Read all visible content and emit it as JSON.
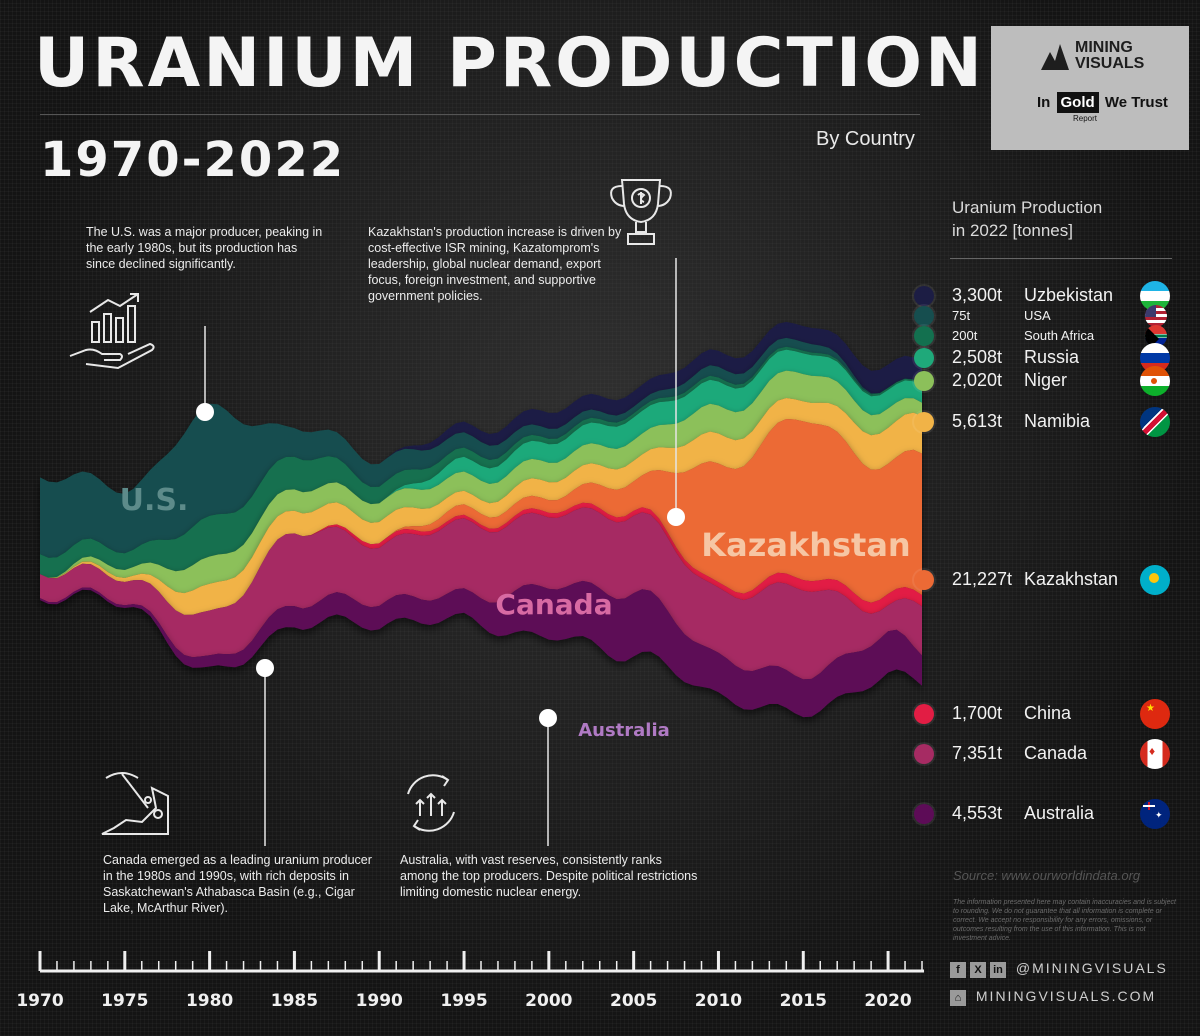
{
  "title": "URANIUM PRODUCTION",
  "years_label": "1970-2022",
  "subtitle": "By Country",
  "logo": {
    "brand_line1": "MINING",
    "brand_line2": "VISUALS",
    "partner_in": "In",
    "partner_gold": "Gold",
    "partner_trust": "We Trust",
    "partner_report": "Report"
  },
  "annotations": {
    "us": "The U.S. was a major producer, peaking in the early 1980s, but its production has since declined significantly.",
    "kazakhstan": "Kazakhstan's production increase is driven by cost-effective ISR mining, Kazatomprom's leadership, global nuclear demand, export focus, foreign investment, and supportive government policies.",
    "canada": "Canada emerged as a leading uranium producer in the 1980s and 1990s, with rich deposits in Saskatchewan's Athabasca Basin (e.g., Cigar Lake, McArthur River).",
    "australia": "Australia, with vast reserves, consistently ranks among the top producers. Despite political restrictions limiting domestic nuclear energy."
  },
  "panel": {
    "title_line1": "Uranium Production",
    "title_line2": "in 2022 [tonnes]",
    "rows": [
      {
        "value": "3,300t",
        "country": "Uzbekistan",
        "color": "#1c1d44",
        "size": "large"
      },
      {
        "value": "75t",
        "country": "USA",
        "color": "#164e4f",
        "size": "small"
      },
      {
        "value": "200t",
        "country": "South Africa",
        "color": "#13704f",
        "size": "small"
      },
      {
        "value": "2,508t",
        "country": "Russia",
        "color": "#1fa97a",
        "size": "large"
      },
      {
        "value": "2,020t",
        "country": "Niger",
        "color": "#8cc05a",
        "size": "large"
      },
      {
        "value": "5,613t",
        "country": "Namibia",
        "color": "#f1b347",
        "size": "large"
      },
      {
        "value": "21,227t",
        "country": "Kazakhstan",
        "color": "#ec6a35",
        "size": "large"
      },
      {
        "value": "1,700t",
        "country": "China",
        "color": "#e21d44",
        "size": "large"
      },
      {
        "value": "7,351t",
        "country": "Canada",
        "color": "#a62b63",
        "size": "large"
      },
      {
        "value": "4,553t",
        "country": "Australia",
        "color": "#5d0c57",
        "size": "large"
      }
    ]
  },
  "source": "Source: www.ourworldindata.org",
  "disclaimer": "The information presented here may contain inaccuracies and is subject to rounding. We do not guarantee that all information is complete or correct. We accept no responsibility for any errors, omissions, or outcomes resulting from the use of this information. This is not investment advice.",
  "social_handle": "@MININGVISUALS",
  "website": "MININGVISUALS.COM",
  "chart_data": {
    "type": "area",
    "subtype": "streamgraph",
    "title": "URANIUM PRODUCTION",
    "subtitle": "By Country",
    "x_tick_labels": [
      "1970",
      "1975",
      "1980",
      "1985",
      "1990",
      "1995",
      "2000",
      "2005",
      "2010",
      "2015",
      "2020"
    ],
    "x": [
      1970,
      1975,
      1980,
      1985,
      1990,
      1995,
      2000,
      2005,
      2010,
      2015,
      2020,
      2022
    ],
    "y_unit": "tonnes",
    "series": [
      {
        "name": "Australia",
        "color": "#5d0c57",
        "values": [
          300,
          400,
          1700,
          3200,
          3500,
          3700,
          7600,
          9500,
          5900,
          5650,
          6200,
          4553
        ]
      },
      {
        "name": "Canada",
        "color": "#a62b63",
        "values": [
          3600,
          3500,
          6700,
          10900,
          8700,
          10500,
          10700,
          11600,
          9800,
          13300,
          3900,
          7351
        ]
      },
      {
        "name": "China",
        "color": "#e21d44",
        "values": [
          0,
          0,
          0,
          0,
          700,
          500,
          700,
          750,
          800,
          1600,
          1700,
          1700
        ]
      },
      {
        "name": "Kazakhstan",
        "color": "#ec6a35",
        "values": [
          0,
          0,
          0,
          0,
          0,
          1600,
          1900,
          4400,
          17800,
          23800,
          19500,
          21227
        ]
      },
      {
        "name": "Namibia",
        "color": "#f1b347",
        "values": [
          0,
          600,
          4000,
          3400,
          3200,
          2000,
          2700,
          3100,
          4500,
          3000,
          5400,
          5613
        ]
      },
      {
        "name": "Niger",
        "color": "#8cc05a",
        "values": [
          0,
          1200,
          4100,
          3200,
          2800,
          2900,
          2900,
          3100,
          4200,
          4100,
          2900,
          2020
        ]
      },
      {
        "name": "Russia",
        "color": "#1fa97a",
        "values": [
          0,
          0,
          0,
          0,
          0,
          2200,
          2800,
          3400,
          3600,
          3100,
          2800,
          2508
        ]
      },
      {
        "name": "South Africa",
        "color": "#13704f",
        "values": [
          3000,
          2500,
          6100,
          4900,
          2500,
          1400,
          800,
          600,
          600,
          400,
          300,
          200
        ]
      },
      {
        "name": "USA",
        "color": "#164e4f",
        "values": [
          11500,
          8900,
          16800,
          4300,
          3400,
          2300,
          1500,
          1000,
          1600,
          1300,
          10,
          75
        ]
      },
      {
        "name": "Uzbekistan",
        "color": "#1c1d44",
        "values": [
          0,
          0,
          0,
          0,
          0,
          1600,
          2400,
          2300,
          2400,
          2400,
          3500,
          3300
        ]
      }
    ],
    "stream_labels": [
      "U.S.",
      "Canada",
      "Kazakhstan",
      "Australia"
    ],
    "legend": "right",
    "grid": false
  }
}
